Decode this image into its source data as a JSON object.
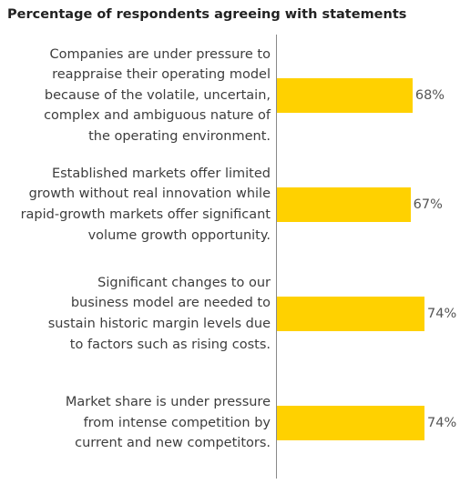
{
  "chart_data": {
    "type": "bar",
    "orientation": "horizontal",
    "title": "Percentage of respondents agreeing with statements",
    "xlabel": "",
    "ylabel": "",
    "grid": false,
    "xlim": [
      0,
      100
    ],
    "categories": [
      "Companies are under pressure to\nreappraise their operating model\nbecause of the volatile, uncertain,\ncomplex and ambiguous nature of\nthe operating environment.",
      "Established markets offer limited\ngrowth without real innovation while\nrapid-growth markets offer significant\nvolume growth opportunity.",
      "Significant changes to our\nbusiness model are needed to\nsustain historic margin levels due\nto factors such as rising costs.",
      "Market share is under pressure\nfrom intense competition by\ncurrent and new competitors."
    ],
    "values": [
      68,
      67,
      74,
      74
    ],
    "value_labels": [
      "68%",
      "67%",
      "74%",
      "74%"
    ],
    "colors": {
      "bar": "#ffd100",
      "axis": "#8a8a8a",
      "text": "#3d3d3d",
      "value_text": "#555555"
    }
  }
}
